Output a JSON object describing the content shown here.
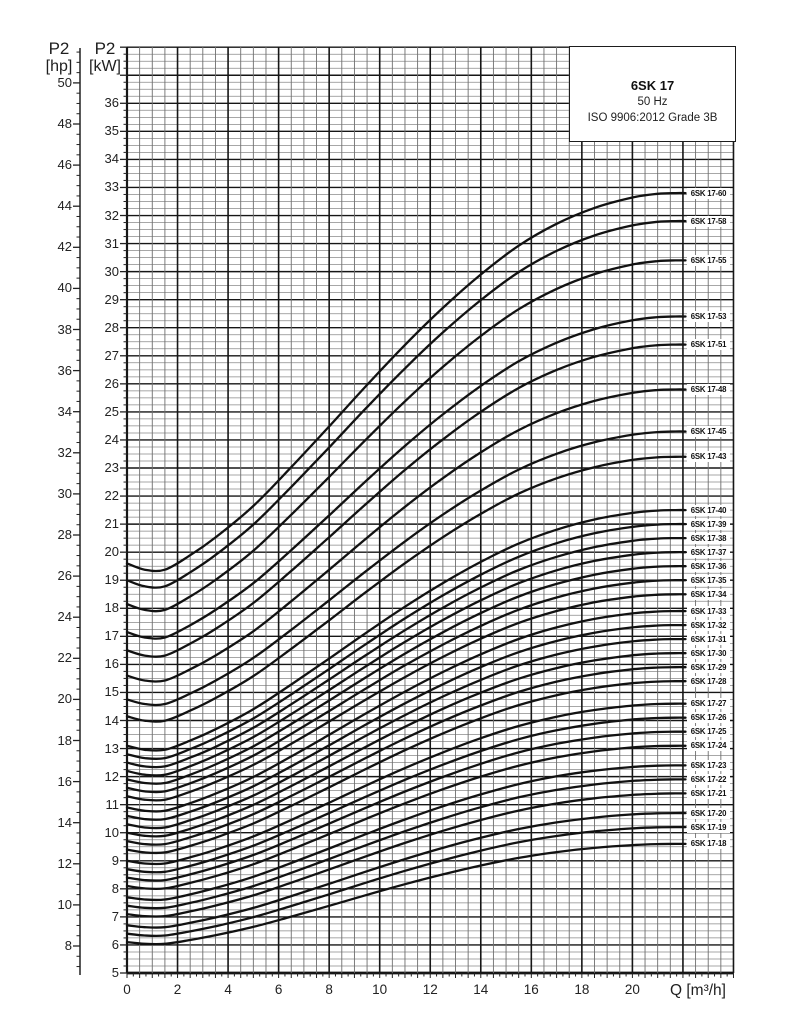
{
  "chart_title_box": {
    "model": "6SK 17",
    "frequency": "50 Hz",
    "standard": "ISO 9906:2012 Grade 3B"
  },
  "y_axis_hp": {
    "title": "P2",
    "unit": "[hp]",
    "tick_labels": [
      8,
      10,
      12,
      14,
      16,
      18,
      20,
      22,
      24,
      26,
      28,
      30,
      32,
      34,
      36,
      38,
      40,
      42,
      44,
      46,
      48,
      50
    ]
  },
  "y_axis_kw": {
    "title": "P2",
    "unit": "[kW]",
    "tick_labels": [
      5,
      6,
      7,
      8,
      9,
      10,
      11,
      12,
      13,
      14,
      15,
      16,
      17,
      18,
      19,
      20,
      21,
      22,
      23,
      24,
      25,
      26,
      27,
      28,
      29,
      30,
      31,
      32,
      33,
      34,
      35,
      36
    ]
  },
  "x_axis": {
    "title": "Q [m³/h]",
    "tick_labels": [
      0,
      2,
      4,
      6,
      8,
      10,
      12,
      14,
      16,
      18,
      20
    ]
  },
  "colors": {
    "background": "#ffffff",
    "curve": "#121212",
    "grid_minor_h": "#8a8a8a",
    "grid_minor_v": "#6e6e6e",
    "grid_major": "#161616",
    "text": "#1a1a1a"
  },
  "chart_data": {
    "type": "line",
    "title": "6SK 17 50 Hz — shaft power P2 vs flow Q (ISO 9906:2012 Grade 3B)",
    "xlabel": "Q [m³/h]",
    "ylabel": "P2 [kW]",
    "kw_axis_range": [
      5,
      38
    ],
    "hp_axis_range": [
      6.6,
      51.7
    ],
    "q_grid_range": [
      0,
      24
    ],
    "q_curve_range": [
      0,
      22.1
    ],
    "grid": "on",
    "normalized_rise_profile": [
      [
        0,
        0
      ],
      [
        0.7,
        -0.017
      ],
      [
        1.5,
        -0.017
      ],
      [
        2.5,
        0.022
      ],
      [
        3.5,
        0.07
      ],
      [
        5,
        0.155
      ],
      [
        6.5,
        0.26
      ],
      [
        8,
        0.37
      ],
      [
        9.5,
        0.482
      ],
      [
        11,
        0.59
      ],
      [
        12.5,
        0.69
      ],
      [
        14,
        0.78
      ],
      [
        15.5,
        0.858
      ],
      [
        17,
        0.917
      ],
      [
        18.5,
        0.96
      ],
      [
        20,
        0.988
      ],
      [
        21,
        0.998
      ],
      [
        21.7,
        1.0
      ],
      [
        22.1,
        1.0
      ]
    ],
    "series": [
      {
        "name": "6SK 17-60",
        "p2_kw_at_q0": 19.6,
        "p2_kw_at_qmax": 32.8
      },
      {
        "name": "6SK 17-58",
        "p2_kw_at_q0": 19.0,
        "p2_kw_at_qmax": 31.8
      },
      {
        "name": "6SK 17-55",
        "p2_kw_at_q0": 18.15,
        "p2_kw_at_qmax": 30.4
      },
      {
        "name": "6SK 17-53",
        "p2_kw_at_q0": 17.15,
        "p2_kw_at_qmax": 28.4
      },
      {
        "name": "6SK 17-51",
        "p2_kw_at_q0": 16.5,
        "p2_kw_at_qmax": 27.4
      },
      {
        "name": "6SK 17-48",
        "p2_kw_at_q0": 15.6,
        "p2_kw_at_qmax": 25.8
      },
      {
        "name": "6SK 17-45",
        "p2_kw_at_q0": 14.75,
        "p2_kw_at_qmax": 24.3
      },
      {
        "name": "6SK 17-43",
        "p2_kw_at_q0": 14.15,
        "p2_kw_at_qmax": 23.4
      },
      {
        "name": "6SK 17-40",
        "p2_kw_at_q0": 13.1,
        "p2_kw_at_qmax": 21.5
      },
      {
        "name": "6SK 17-39",
        "p2_kw_at_q0": 12.8,
        "p2_kw_at_qmax": 21.0
      },
      {
        "name": "6SK 17-38",
        "p2_kw_at_q0": 12.5,
        "p2_kw_at_qmax": 20.5
      },
      {
        "name": "6SK 17-37",
        "p2_kw_at_q0": 12.2,
        "p2_kw_at_qmax": 20.0
      },
      {
        "name": "6SK 17-36",
        "p2_kw_at_q0": 11.9,
        "p2_kw_at_qmax": 19.5
      },
      {
        "name": "6SK 17-35",
        "p2_kw_at_q0": 11.6,
        "p2_kw_at_qmax": 19.0
      },
      {
        "name": "6SK 17-34",
        "p2_kw_at_q0": 11.3,
        "p2_kw_at_qmax": 18.5
      },
      {
        "name": "6SK 17-33",
        "p2_kw_at_q0": 10.9,
        "p2_kw_at_qmax": 17.9
      },
      {
        "name": "6SK 17-32",
        "p2_kw_at_q0": 10.6,
        "p2_kw_at_qmax": 17.4
      },
      {
        "name": "6SK 17-31",
        "p2_kw_at_q0": 10.3,
        "p2_kw_at_qmax": 16.9
      },
      {
        "name": "6SK 17-30",
        "p2_kw_at_q0": 10.0,
        "p2_kw_at_qmax": 16.4
      },
      {
        "name": "6SK 17-29",
        "p2_kw_at_q0": 9.7,
        "p2_kw_at_qmax": 15.9
      },
      {
        "name": "6SK 17-28",
        "p2_kw_at_q0": 9.4,
        "p2_kw_at_qmax": 15.4
      },
      {
        "name": "6SK 17-27",
        "p2_kw_at_q0": 9.0,
        "p2_kw_at_qmax": 14.6
      },
      {
        "name": "6SK 17-26",
        "p2_kw_at_q0": 8.7,
        "p2_kw_at_qmax": 14.1
      },
      {
        "name": "6SK 17-25",
        "p2_kw_at_q0": 8.4,
        "p2_kw_at_qmax": 13.6
      },
      {
        "name": "6SK 17-24",
        "p2_kw_at_q0": 8.1,
        "p2_kw_at_qmax": 13.1
      },
      {
        "name": "6SK 17-23",
        "p2_kw_at_q0": 7.7,
        "p2_kw_at_qmax": 12.4
      },
      {
        "name": "6SK 17-22",
        "p2_kw_at_q0": 7.4,
        "p2_kw_at_qmax": 11.9
      },
      {
        "name": "6SK 17-21",
        "p2_kw_at_q0": 7.1,
        "p2_kw_at_qmax": 11.4
      },
      {
        "name": "6SK 17-20",
        "p2_kw_at_q0": 6.7,
        "p2_kw_at_qmax": 10.7
      },
      {
        "name": "6SK 17-19",
        "p2_kw_at_q0": 6.4,
        "p2_kw_at_qmax": 10.2
      },
      {
        "name": "6SK 17-18",
        "p2_kw_at_q0": 6.1,
        "p2_kw_at_qmax": 9.6
      }
    ]
  }
}
